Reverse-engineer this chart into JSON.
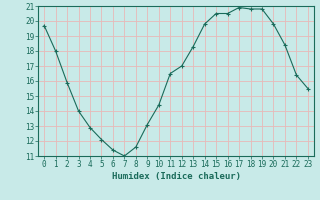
{
  "x": [
    0,
    1,
    2,
    3,
    4,
    5,
    6,
    7,
    8,
    9,
    10,
    11,
    12,
    13,
    14,
    15,
    16,
    17,
    18,
    19,
    20,
    21,
    22,
    23
  ],
  "y": [
    19.7,
    18.0,
    15.9,
    14.0,
    12.9,
    12.1,
    11.4,
    11.0,
    11.6,
    13.1,
    14.4,
    16.5,
    17.0,
    18.3,
    19.8,
    20.5,
    20.5,
    20.9,
    20.8,
    20.8,
    19.8,
    18.4,
    16.4,
    15.5
  ],
  "xlabel": "Humidex (Indice chaleur)",
  "line_color": "#1a6b5a",
  "marker": "+",
  "bg_color": "#c8eae8",
  "grid_color": "#e8b8b8",
  "axis_color": "#1a6b5a",
  "ylim": [
    11,
    21
  ],
  "xlim": [
    -0.5,
    23.5
  ],
  "yticks": [
    11,
    12,
    13,
    14,
    15,
    16,
    17,
    18,
    19,
    20,
    21
  ],
  "xticks": [
    0,
    1,
    2,
    3,
    4,
    5,
    6,
    7,
    8,
    9,
    10,
    11,
    12,
    13,
    14,
    15,
    16,
    17,
    18,
    19,
    20,
    21,
    22,
    23
  ],
  "tick_fontsize": 5.5,
  "label_fontsize": 6.5
}
